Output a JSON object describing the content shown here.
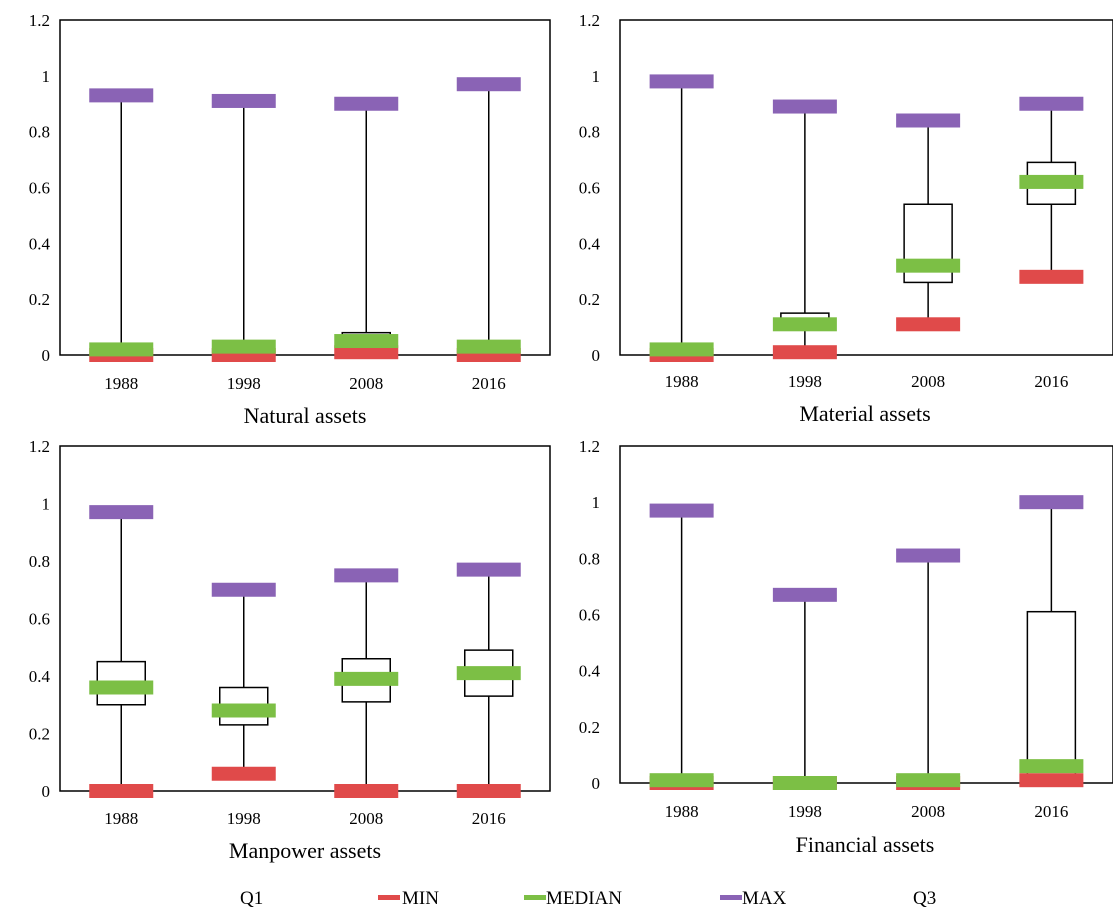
{
  "colors": {
    "min": "#e04a4a",
    "median": "#7cbf45",
    "max": "#8a63b5",
    "box": "#ffffff",
    "stroke": "#000000"
  },
  "legend": [
    "Q1",
    "MIN",
    "MEDIAN",
    "MAX",
    "Q3"
  ],
  "chart_data": [
    {
      "type": "box",
      "title": "Natural assets",
      "categories": [
        "1988",
        "1998",
        "2008",
        "2016"
      ],
      "ylim": [
        0,
        1.2
      ],
      "yticks": [
        "0",
        "0.2",
        "0.4",
        "0.6",
        "0.8",
        "1",
        "1.2"
      ],
      "series": [
        {
          "name": "MIN",
          "values": [
            0.0,
            0.0,
            0.01,
            0.0
          ]
        },
        {
          "name": "Q1",
          "values": [
            0.0,
            0.0,
            0.02,
            0.0
          ]
        },
        {
          "name": "MEDIAN",
          "values": [
            0.02,
            0.03,
            0.05,
            0.03
          ]
        },
        {
          "name": "Q3",
          "values": [
            0.04,
            0.05,
            0.08,
            0.05
          ]
        },
        {
          "name": "MAX",
          "values": [
            0.93,
            0.91,
            0.9,
            0.97
          ]
        }
      ]
    },
    {
      "type": "box",
      "title": "Material assets",
      "categories": [
        "1988",
        "1998",
        "2008",
        "2016"
      ],
      "ylim": [
        0,
        1.2
      ],
      "yticks": [
        "0",
        "0.2",
        "0.4",
        "0.6",
        "0.8",
        "1",
        "1.2"
      ],
      "series": [
        {
          "name": "MIN",
          "values": [
            0.0,
            0.01,
            0.11,
            0.28
          ]
        },
        {
          "name": "Q1",
          "values": [
            0.0,
            0.09,
            0.26,
            0.54
          ]
        },
        {
          "name": "MEDIAN",
          "values": [
            0.02,
            0.11,
            0.32,
            0.62
          ]
        },
        {
          "name": "Q3",
          "values": [
            0.04,
            0.15,
            0.54,
            0.69
          ]
        },
        {
          "name": "MAX",
          "values": [
            0.98,
            0.89,
            0.84,
            0.9
          ]
        }
      ]
    },
    {
      "type": "box",
      "title": "Manpower assets",
      "categories": [
        "1988",
        "1998",
        "2008",
        "2016"
      ],
      "ylim": [
        0,
        1.2
      ],
      "yticks": [
        "0",
        "0.2",
        "0.4",
        "0.6",
        "0.8",
        "1",
        "1.2"
      ],
      "series": [
        {
          "name": "MIN",
          "values": [
            0.0,
            0.06,
            0.0,
            0.0
          ]
        },
        {
          "name": "Q1",
          "values": [
            0.3,
            0.23,
            0.31,
            0.33
          ]
        },
        {
          "name": "MEDIAN",
          "values": [
            0.36,
            0.28,
            0.39,
            0.41
          ]
        },
        {
          "name": "Q3",
          "values": [
            0.45,
            0.36,
            0.46,
            0.49
          ]
        },
        {
          "name": "MAX",
          "values": [
            0.97,
            0.7,
            0.75,
            0.77
          ]
        }
      ]
    },
    {
      "type": "box",
      "title": "Financial assets",
      "categories": [
        "1988",
        "1998",
        "2008",
        "2016"
      ],
      "ylim": [
        0,
        1.2
      ],
      "yticks": [
        "0",
        "0.2",
        "0.4",
        "0.6",
        "0.8",
        "1",
        "1.2"
      ],
      "series": [
        {
          "name": "MIN",
          "values": [
            0.0,
            0.0,
            0.0,
            0.01
          ]
        },
        {
          "name": "Q1",
          "values": [
            0.0,
            0.0,
            0.0,
            0.03
          ]
        },
        {
          "name": "MEDIAN",
          "values": [
            0.01,
            0.0,
            0.01,
            0.06
          ]
        },
        {
          "name": "Q3",
          "values": [
            0.02,
            0.01,
            0.02,
            0.61
          ]
        },
        {
          "name": "MAX",
          "values": [
            0.97,
            0.67,
            0.81,
            1.0
          ]
        }
      ]
    }
  ]
}
